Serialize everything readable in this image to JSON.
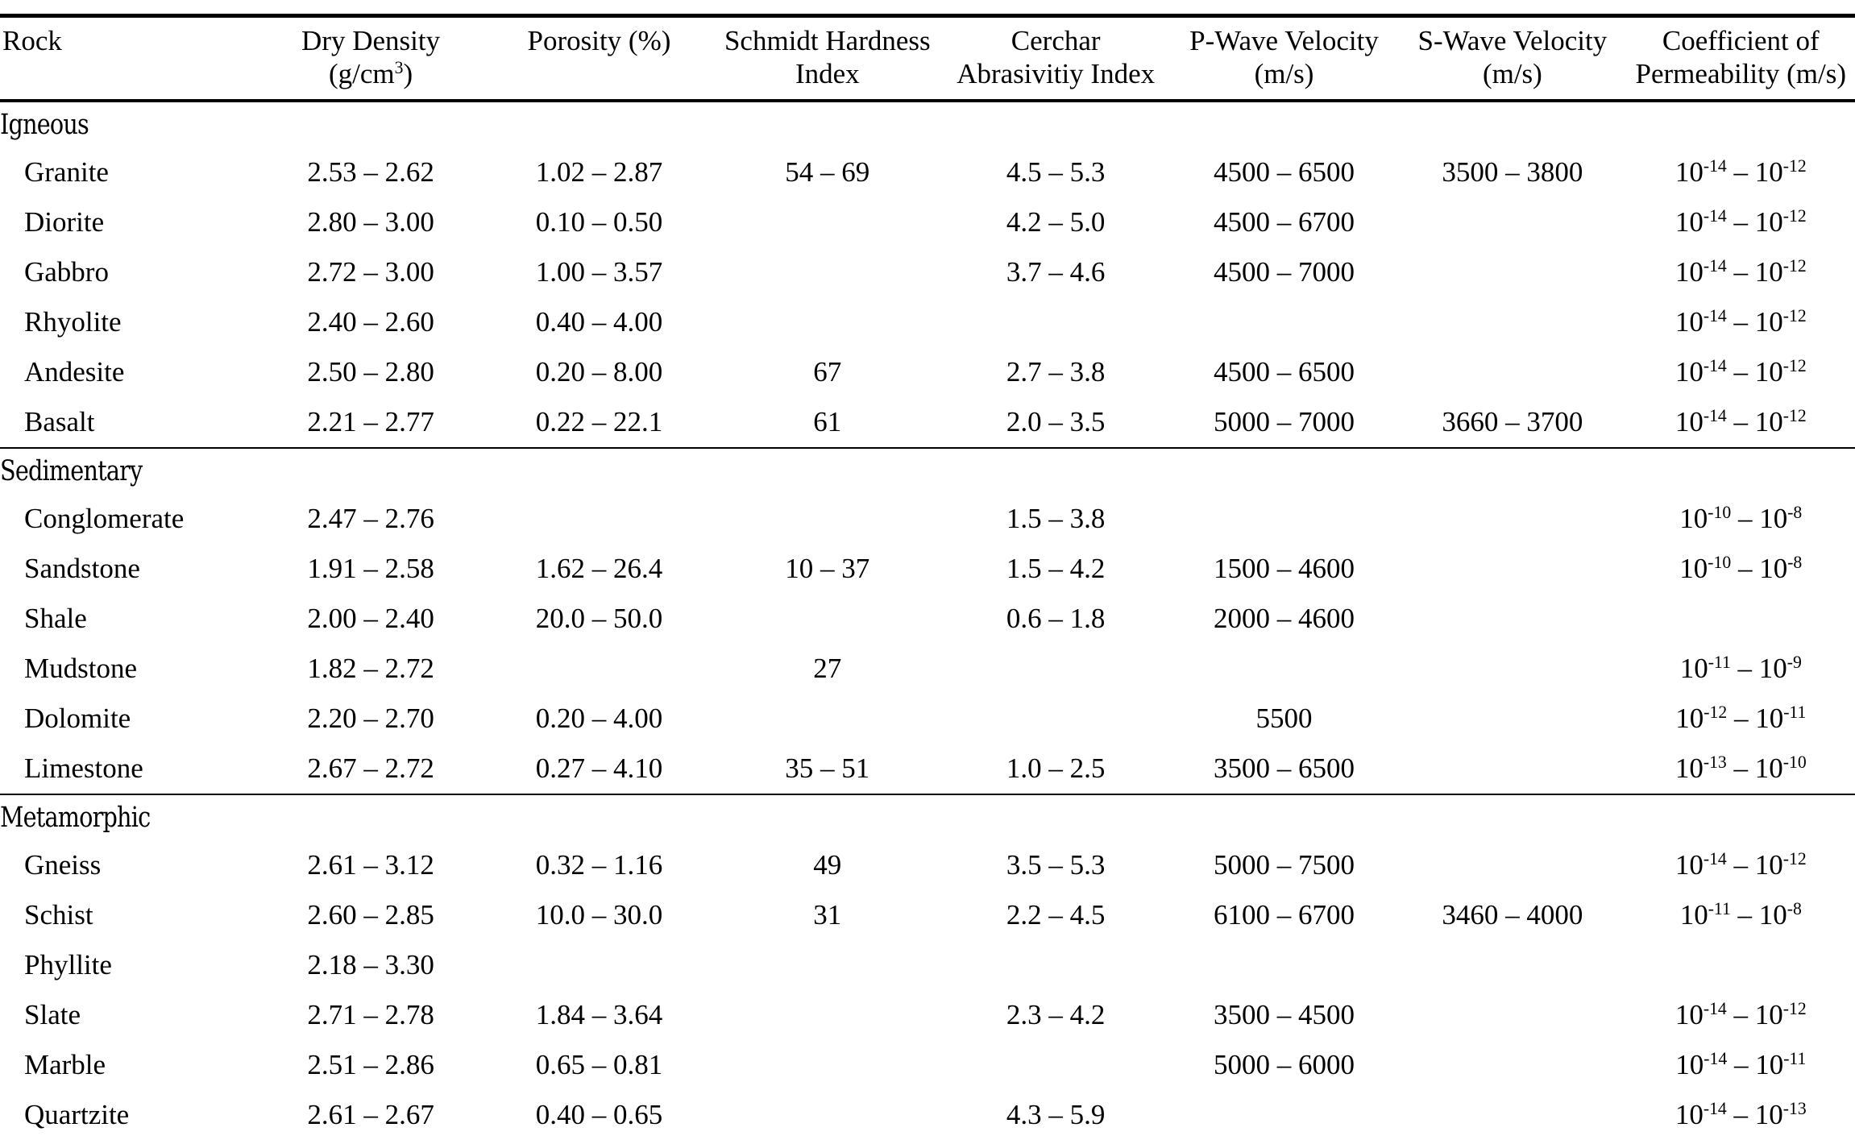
{
  "table": {
    "columns": [
      {
        "line1": "Rock",
        "line2": ""
      },
      {
        "line1": "Dry Density",
        "line2": "(g/cm^3)"
      },
      {
        "line1": "Porosity (%)",
        "line2": ""
      },
      {
        "line1": "Schmidt Hardness",
        "line2": "Index"
      },
      {
        "line1": "Cerchar",
        "line2": "Abrasivitiy Index"
      },
      {
        "line1": "P-Wave Velocity",
        "line2": "(m/s)"
      },
      {
        "line1": "S-Wave Velocity",
        "line2": "(m/s)"
      },
      {
        "line1": "Coefficient of",
        "line2": "Permeability (m/s)"
      }
    ],
    "groups": [
      {
        "name": "Igneous",
        "rows": [
          {
            "rock": "Granite",
            "dry_density": "2.53 – 2.62",
            "porosity": "1.02 – 2.87",
            "schmidt": "54 – 69",
            "cerchar": "4.5 – 5.3",
            "p_wave": "4500 – 6500",
            "s_wave": "3500 – 3800",
            "permeability": "10^-14 – 10^-12"
          },
          {
            "rock": "Diorite",
            "dry_density": "2.80 – 3.00",
            "porosity": "0.10 – 0.50",
            "schmidt": "",
            "cerchar": "4.2 – 5.0",
            "p_wave": "4500 – 6700",
            "s_wave": "",
            "permeability": "10^-14 – 10^-12"
          },
          {
            "rock": "Gabbro",
            "dry_density": "2.72 – 3.00",
            "porosity": "1.00 – 3.57",
            "schmidt": "",
            "cerchar": "3.7 – 4.6",
            "p_wave": "4500 – 7000",
            "s_wave": "",
            "permeability": "10^-14 – 10^-12"
          },
          {
            "rock": "Rhyolite",
            "dry_density": "2.40 – 2.60",
            "porosity": "0.40 – 4.00",
            "schmidt": "",
            "cerchar": "",
            "p_wave": "",
            "s_wave": "",
            "permeability": "10^-14 – 10^-12"
          },
          {
            "rock": "Andesite",
            "dry_density": "2.50 – 2.80",
            "porosity": "0.20 – 8.00",
            "schmidt": "67",
            "cerchar": "2.7 – 3.8",
            "p_wave": "4500 – 6500",
            "s_wave": "",
            "permeability": "10^-14 – 10^-12"
          },
          {
            "rock": "Basalt",
            "dry_density": "2.21 – 2.77",
            "porosity": "0.22 – 22.1",
            "schmidt": "61",
            "cerchar": "2.0 – 3.5",
            "p_wave": "5000 – 7000",
            "s_wave": "3660 – 3700",
            "permeability": "10^-14 – 10^-12"
          }
        ]
      },
      {
        "name": "Sedimentary",
        "rows": [
          {
            "rock": "Conglomerate",
            "dry_density": "2.47 – 2.76",
            "porosity": "",
            "schmidt": "",
            "cerchar": "1.5 – 3.8",
            "p_wave": "",
            "s_wave": "",
            "permeability": "10^-10 – 10^-8"
          },
          {
            "rock": "Sandstone",
            "dry_density": "1.91 – 2.58",
            "porosity": "1.62 – 26.4",
            "schmidt": "10 – 37",
            "cerchar": "1.5 – 4.2",
            "p_wave": "1500 – 4600",
            "s_wave": "",
            "permeability": "10^-10 – 10^-8"
          },
          {
            "rock": "Shale",
            "dry_density": "2.00 – 2.40",
            "porosity": "20.0 – 50.0",
            "schmidt": "",
            "cerchar": "0.6 – 1.8",
            "p_wave": "2000 – 4600",
            "s_wave": "",
            "permeability": ""
          },
          {
            "rock": "Mudstone",
            "dry_density": "1.82 – 2.72",
            "porosity": "",
            "schmidt": "27",
            "cerchar": "",
            "p_wave": "",
            "s_wave": "",
            "permeability": "10^-11 – 10^-9"
          },
          {
            "rock": "Dolomite",
            "dry_density": "2.20 – 2.70",
            "porosity": "0.20 – 4.00",
            "schmidt": "",
            "cerchar": "",
            "p_wave": "5500",
            "s_wave": "",
            "permeability": "10^-12 – 10^-11"
          },
          {
            "rock": "Limestone",
            "dry_density": "2.67 – 2.72",
            "porosity": "0.27 – 4.10",
            "schmidt": "35 – 51",
            "cerchar": "1.0 – 2.5",
            "p_wave": "3500 – 6500",
            "s_wave": "",
            "permeability": "10^-13 – 10^-10"
          }
        ]
      },
      {
        "name": "Metamorphic",
        "rows": [
          {
            "rock": "Gneiss",
            "dry_density": "2.61 – 3.12",
            "porosity": "0.32 – 1.16",
            "schmidt": "49",
            "cerchar": "3.5 – 5.3",
            "p_wave": "5000 – 7500",
            "s_wave": "",
            "permeability": "10^-14 – 10^-12"
          },
          {
            "rock": "Schist",
            "dry_density": "2.60 – 2.85",
            "porosity": "10.0 – 30.0",
            "schmidt": "31",
            "cerchar": "2.2 – 4.5",
            "p_wave": "6100 – 6700",
            "s_wave": "3460 – 4000",
            "permeability": "10^-11 – 10^-8"
          },
          {
            "rock": "Phyllite",
            "dry_density": "2.18 – 3.30",
            "porosity": "",
            "schmidt": "",
            "cerchar": "",
            "p_wave": "",
            "s_wave": "",
            "permeability": ""
          },
          {
            "rock": "Slate",
            "dry_density": "2.71 – 2.78",
            "porosity": "1.84 – 3.64",
            "schmidt": "",
            "cerchar": "2.3 – 4.2",
            "p_wave": "3500 – 4500",
            "s_wave": "",
            "permeability": "10^-14 – 10^-12"
          },
          {
            "rock": "Marble",
            "dry_density": "2.51 – 2.86",
            "porosity": "0.65 – 0.81",
            "schmidt": "",
            "cerchar": "",
            "p_wave": "5000 – 6000",
            "s_wave": "",
            "permeability": "10^-14 – 10^-11"
          },
          {
            "rock": "Quartzite",
            "dry_density": "2.61 – 2.67",
            "porosity": "0.40 – 0.65",
            "schmidt": "",
            "cerchar": "4.3 – 5.9",
            "p_wave": "",
            "s_wave": "",
            "permeability": "10^-14 – 10^-13"
          }
        ]
      }
    ]
  }
}
